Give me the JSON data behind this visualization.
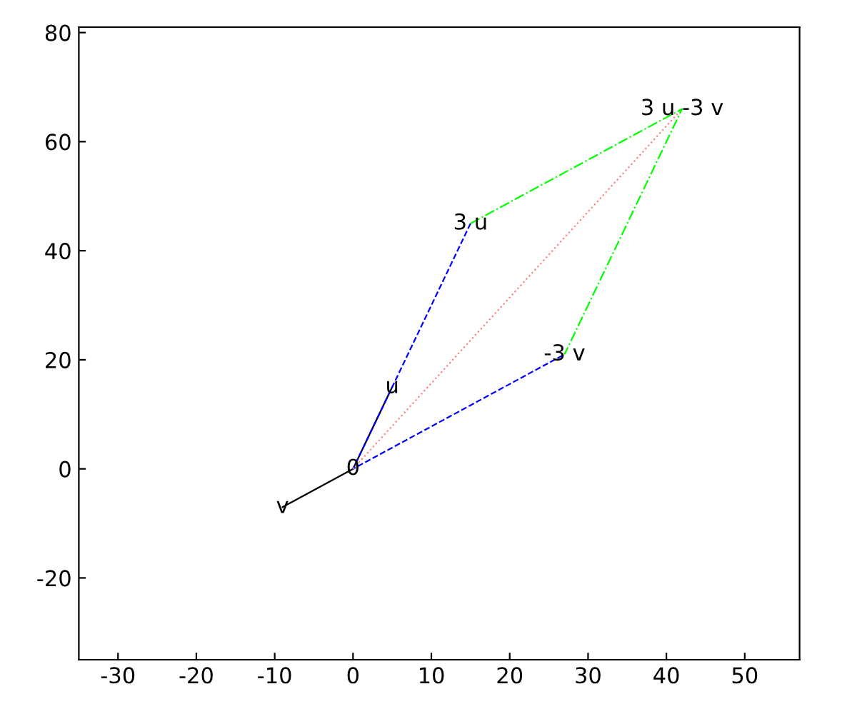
{
  "chart_data": {
    "type": "line",
    "series": [
      {
        "x": [
          5,
          0,
          -9
        ],
        "values": [
          15,
          0,
          -7
        ],
        "color": "#000000",
        "line_style": "solid"
      },
      {
        "x": [
          15,
          0,
          27
        ],
        "values": [
          45,
          0,
          21
        ],
        "color": "#0000ff",
        "line_style": "dashed"
      },
      {
        "x": [
          0,
          42
        ],
        "values": [
          0,
          66
        ],
        "color": "#ff8080",
        "line_style": "dotted"
      },
      {
        "x": [
          15,
          42,
          27
        ],
        "values": [
          45,
          66,
          21
        ],
        "color": "#00ff00",
        "line_style": "dashdot"
      }
    ],
    "annotations": [
      {
        "text": "u",
        "x": 5,
        "y": 15
      },
      {
        "text": "v",
        "x": -9,
        "y": -7
      },
      {
        "text": "0",
        "x": 0,
        "y": 0
      },
      {
        "text": "3 u",
        "x": 15,
        "y": 45
      },
      {
        "text": "-3 v",
        "x": 27,
        "y": 21
      },
      {
        "text": "3 u -3 v",
        "x": 42,
        "y": 66
      }
    ],
    "xlim": [
      -35,
      57
    ],
    "ylim": [
      -35,
      81
    ],
    "xticks": [
      -30,
      -20,
      -10,
      0,
      10,
      20,
      30,
      40,
      50
    ],
    "yticks": [
      -20,
      0,
      20,
      40,
      60,
      80
    ],
    "grid": false,
    "legend": false,
    "marker": "none"
  }
}
